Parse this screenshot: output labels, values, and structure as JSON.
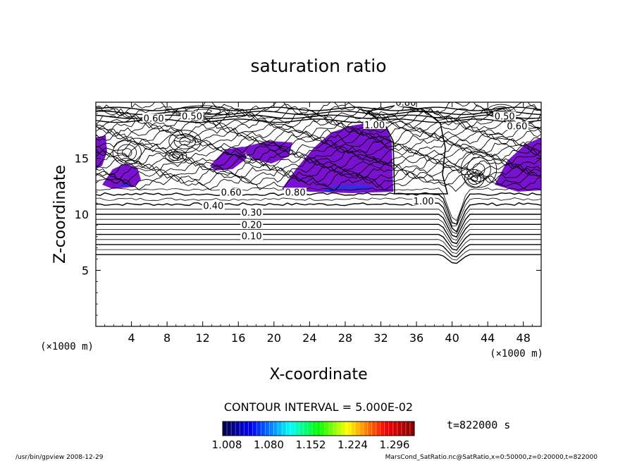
{
  "chart_data": {
    "type": "contour",
    "title": "saturation ratio",
    "xlabel": "X-coordinate",
    "ylabel": "Z-coordinate",
    "x_unit_label": "(×1000 m)",
    "z_unit_label": "(×1000 m)",
    "xlim": [
      0,
      50
    ],
    "zlim": [
      0,
      20
    ],
    "x_ticks": [
      4,
      8,
      12,
      16,
      20,
      24,
      28,
      32,
      36,
      40,
      44,
      48
    ],
    "z_ticks": [
      5,
      10,
      15
    ],
    "contour_interval_text": "CONTOUR INTERVAL = 5.000E-02",
    "time_text": "t=822000 s",
    "colorbar": {
      "tick_labels": [
        "1.008",
        "1.080",
        "1.152",
        "1.224",
        "1.296"
      ],
      "colors": [
        "#000040",
        "#0000ff",
        "#00ffff",
        "#00ff00",
        "#ffff00",
        "#ff0000",
        "#800000"
      ]
    },
    "contour_labels": [
      {
        "text": "0.10",
        "x": 17.5,
        "z": 7.9
      },
      {
        "text": "0.20",
        "x": 17.5,
        "z": 8.9
      },
      {
        "text": "0.30",
        "x": 17.5,
        "z": 10.0
      },
      {
        "text": "0.40",
        "x": 13.2,
        "z": 10.6
      },
      {
        "text": "0.60",
        "x": 15.2,
        "z": 11.8
      },
      {
        "text": "0.80",
        "x": 22.4,
        "z": 11.8
      },
      {
        "text": "0.50",
        "x": 10.8,
        "z": 18.6
      },
      {
        "text": "0.60",
        "x": 6.5,
        "z": 18.4
      },
      {
        "text": "0.80",
        "x": 34.8,
        "z": 19.8
      },
      {
        "text": "1.00",
        "x": 31.3,
        "z": 17.8
      },
      {
        "text": "0.50",
        "x": 45.9,
        "z": 18.6
      },
      {
        "text": "0.60",
        "x": 47.3,
        "z": 17.7
      },
      {
        "text": "1.00",
        "x": 36.8,
        "z": 11.0
      }
    ],
    "saturated_regions_value_range": [
      1.008,
      1.296
    ],
    "saturated_region_fill": "#7a10d0"
  },
  "footer": {
    "left": "/usr/bin/gpview   2008-12-29",
    "right": "MarsCond_SatRatio.nc@SatRatio,x=0:50000,z=0:20000,t=822000"
  }
}
